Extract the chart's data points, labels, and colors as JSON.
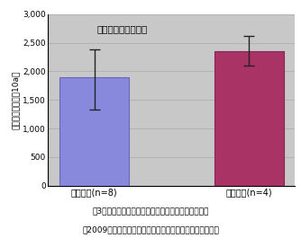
{
  "categories": [
    "慣行栄培(n=8)",
    "拍動灌水(n=4)"
  ],
  "values": [
    1900,
    2350
  ],
  "error_upper": [
    480,
    270
  ],
  "error_lower": [
    570,
    250
  ],
  "bar_colors": [
    "#8888dd",
    "#aa3366"
  ],
  "bar_edge_colors": [
    "#6666bb",
    "#882255"
  ],
  "ylabel": "販売金額（千円／10a）",
  "ylim": [
    0,
    3000
  ],
  "yticks": [
    0,
    500,
    1000,
    1500,
    2000,
    2500,
    3000
  ],
  "ytick_labels": [
    "0",
    "500",
    "1,000",
    "1,500",
    "2,000",
    "2,500",
    "3,000"
  ],
  "annotation": "バーは最大と最小値",
  "plot_bg_color": "#c8c8c8",
  "fig_bg_color": "#ffffff",
  "caption_line1": "図3　慣行栄培と拍動自動灌水導入農家の平均販売額",
  "caption_line2": "（2009年における同一地域の　１０００株以上の生産者）",
  "capsize": 4,
  "bar_width": 0.45,
  "x_positions": [
    0,
    1
  ]
}
